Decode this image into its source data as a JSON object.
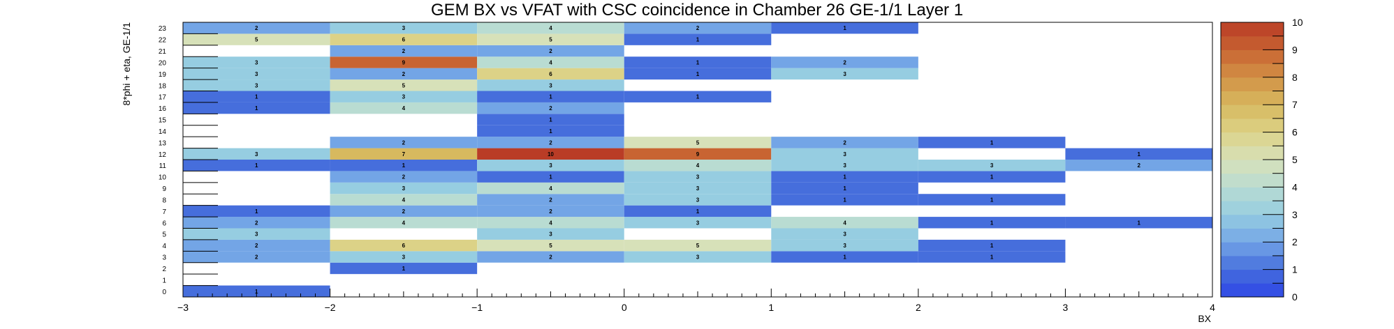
{
  "chart_data": {
    "type": "heatmap",
    "title": "GEM BX vs VFAT with CSC coincidence in Chamber 26 GE-1/1 Layer 1",
    "xlabel": "BX",
    "ylabel": "8*phi + eta, GE-1/1",
    "xlim": [
      -3,
      4
    ],
    "ylim": [
      0,
      24
    ],
    "x_ticks": [
      "−3",
      "−2",
      "−1",
      "0",
      "1",
      "2",
      "3",
      "4"
    ],
    "y_ticks": [
      "0",
      "1",
      "2",
      "3",
      "4",
      "5",
      "6",
      "7",
      "8",
      "9",
      "10",
      "11",
      "12",
      "13",
      "14",
      "15",
      "16",
      "17",
      "18",
      "19",
      "20",
      "21",
      "22",
      "23"
    ],
    "colorbar": {
      "min": 0,
      "max": 10,
      "ticks": [
        "0",
        "1",
        "2",
        "3",
        "4",
        "5",
        "6",
        "7",
        "8",
        "9",
        "10"
      ]
    },
    "bx_bins": [
      -3,
      -2,
      -1,
      0,
      1,
      2,
      3
    ],
    "cells": [
      {
        "vfat": 0,
        "counts": [
          1,
          null,
          null,
          null,
          null,
          null,
          null
        ]
      },
      {
        "vfat": 1,
        "counts": [
          null,
          null,
          null,
          null,
          null,
          null,
          null
        ]
      },
      {
        "vfat": 2,
        "counts": [
          null,
          1,
          null,
          null,
          null,
          null,
          null
        ]
      },
      {
        "vfat": 3,
        "counts": [
          2,
          3,
          2,
          3,
          1,
          1,
          null
        ]
      },
      {
        "vfat": 4,
        "counts": [
          2,
          6,
          5,
          5,
          3,
          1,
          null
        ]
      },
      {
        "vfat": 5,
        "counts": [
          3,
          null,
          3,
          null,
          3,
          null,
          null
        ]
      },
      {
        "vfat": 6,
        "counts": [
          2,
          4,
          4,
          3,
          4,
          1,
          1
        ]
      },
      {
        "vfat": 7,
        "counts": [
          1,
          2,
          2,
          1,
          null,
          null,
          null
        ]
      },
      {
        "vfat": 8,
        "counts": [
          null,
          4,
          2,
          3,
          1,
          1,
          null
        ]
      },
      {
        "vfat": 9,
        "counts": [
          null,
          3,
          4,
          3,
          1,
          null,
          null
        ]
      },
      {
        "vfat": 10,
        "counts": [
          null,
          2,
          1,
          3,
          1,
          1,
          null
        ]
      },
      {
        "vfat": 11,
        "counts": [
          1,
          1,
          3,
          4,
          3,
          3,
          2
        ]
      },
      {
        "vfat": 12,
        "counts": [
          3,
          7,
          10,
          9,
          3,
          null,
          1
        ]
      },
      {
        "vfat": 13,
        "counts": [
          null,
          2,
          2,
          5,
          2,
          1,
          null
        ]
      },
      {
        "vfat": 14,
        "counts": [
          null,
          null,
          1,
          null,
          null,
          null,
          null
        ]
      },
      {
        "vfat": 15,
        "counts": [
          null,
          null,
          1,
          null,
          null,
          null,
          null
        ]
      },
      {
        "vfat": 16,
        "counts": [
          1,
          4,
          2,
          null,
          null,
          null,
          null
        ]
      },
      {
        "vfat": 17,
        "counts": [
          1,
          3,
          1,
          1,
          null,
          null,
          null
        ]
      },
      {
        "vfat": 18,
        "counts": [
          3,
          5,
          3,
          null,
          null,
          null,
          null
        ]
      },
      {
        "vfat": 19,
        "counts": [
          3,
          2,
          6,
          1,
          3,
          null,
          null
        ]
      },
      {
        "vfat": 20,
        "counts": [
          3,
          9,
          4,
          1,
          2,
          null,
          null
        ]
      },
      {
        "vfat": 21,
        "counts": [
          null,
          2,
          2,
          null,
          null,
          null,
          null
        ]
      },
      {
        "vfat": 22,
        "counts": [
          5,
          6,
          5,
          1,
          null,
          null,
          null
        ]
      },
      {
        "vfat": 23,
        "counts": [
          2,
          3,
          4,
          2,
          1,
          null,
          null
        ]
      }
    ]
  }
}
